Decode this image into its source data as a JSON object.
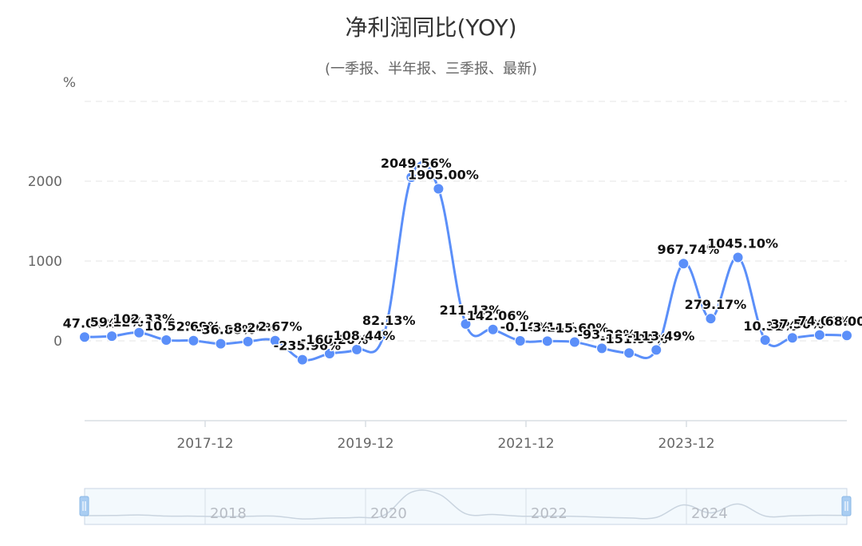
{
  "chart_data": {
    "type": "line",
    "title": "净利润同比(YOY)",
    "subtitle": "(一季报、半年报、三季报、最新)",
    "y_unit": "%",
    "ylim": [
      -1000,
      3000
    ],
    "yticks": [
      "2000",
      "1000",
      "0"
    ],
    "ytick_values": [
      2000,
      1000,
      0
    ],
    "grid": "horizontal dashed",
    "legend": "none",
    "x_tick_labels": [
      "2017-12",
      "2019-12",
      "2021-12",
      "2023-12"
    ],
    "navigator_labels": [
      "2018",
      "2020",
      "2022",
      "2024"
    ],
    "colors": {
      "line": "#5b8ff9",
      "grid": "#e6e6e6",
      "axis": "#d9dde3",
      "navigator_fill": "#e9f4fb",
      "navigator_border": "#c8d5e4",
      "handle": "#a9cdf2"
    },
    "series": [
      {
        "values": [
          47.04,
          59.12,
          102.33,
          10.52,
          2.69,
          -36.8,
          -8.2,
          2.67,
          -235.96,
          -160.2,
          -108.44,
          82.13,
          2049.56,
          1905.0,
          211.13,
          142.06,
          -0.1,
          -3.14,
          -15.6,
          -93.2,
          -151.9,
          -113.49,
          967.74,
          279.17,
          1045.1,
          10.32,
          37.5,
          74.0,
          68.0
        ],
        "labels": [
          "47.04%",
          "59.12%",
          "102.33%",
          "10.52%",
          "2.69%",
          "-36.80%",
          "-8.20%",
          "2.67%",
          "-235.96%",
          "-160.20%",
          "-108.44%",
          "82.13%",
          "2049.56%",
          "1905.00%",
          "211.13%",
          "142.06%",
          "-0.10%",
          "-3.14%",
          "-15.60%",
          "-93.20%",
          "-151.90%",
          "-113.49%",
          "967.74%",
          "279.17%",
          "1045.10%",
          "10.32%",
          "37.50%",
          "74.00%",
          "68.00%"
        ]
      }
    ]
  }
}
